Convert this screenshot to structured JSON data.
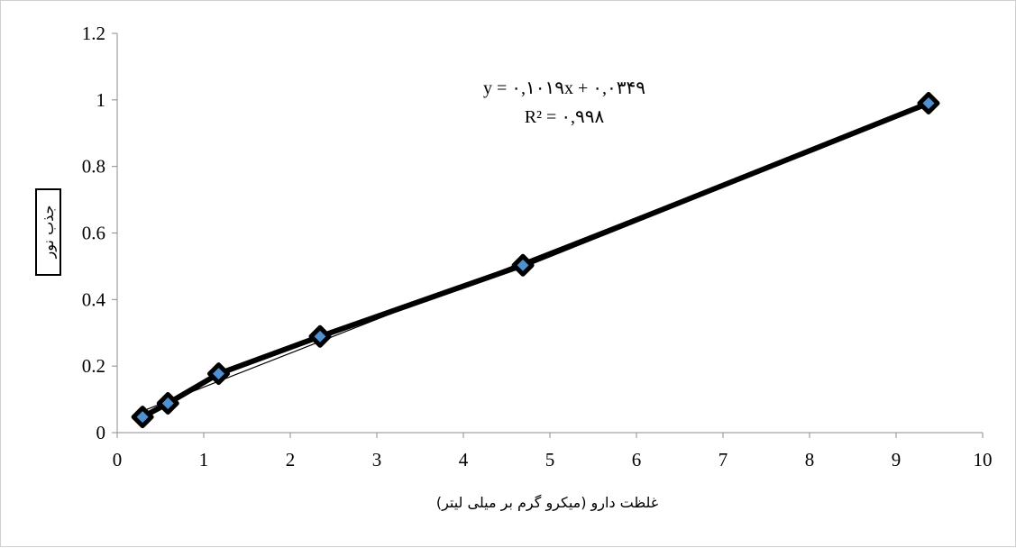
{
  "chart_data": {
    "type": "scatter",
    "xlabel": "غلظت دارو (میکرو گرم بر میلی لیتر)",
    "ylabel": "جذب نور",
    "xlim": [
      0,
      10
    ],
    "ylim": [
      0,
      1.2
    ],
    "x_ticks": [
      "0",
      "1",
      "2",
      "3",
      "4",
      "5",
      "6",
      "7",
      "8",
      "9",
      "10"
    ],
    "y_ticks": [
      "0",
      "0.2",
      "0.4",
      "0.6",
      "0.8",
      "1",
      "1.2"
    ],
    "grid": false,
    "legend": "none",
    "series": [
      {
        "x": [
          0.293,
          0.586,
          1.172,
          2.344,
          4.688,
          9.375
        ],
        "y": [
          0.047,
          0.088,
          0.177,
          0.289,
          0.503,
          0.99
        ],
        "marker": "diamond",
        "marker_fill": "#4f90d0",
        "marker_edge": "#000000",
        "line_color": "#000000"
      }
    ],
    "trendline": {
      "type": "linear",
      "slope": 0.1019,
      "intercept": 0.0349,
      "equation": "y = ۰,۱۰۱۹x + ۰,۰۳۴۹",
      "r_squared": "R² = ۰,۹۹۸"
    }
  }
}
